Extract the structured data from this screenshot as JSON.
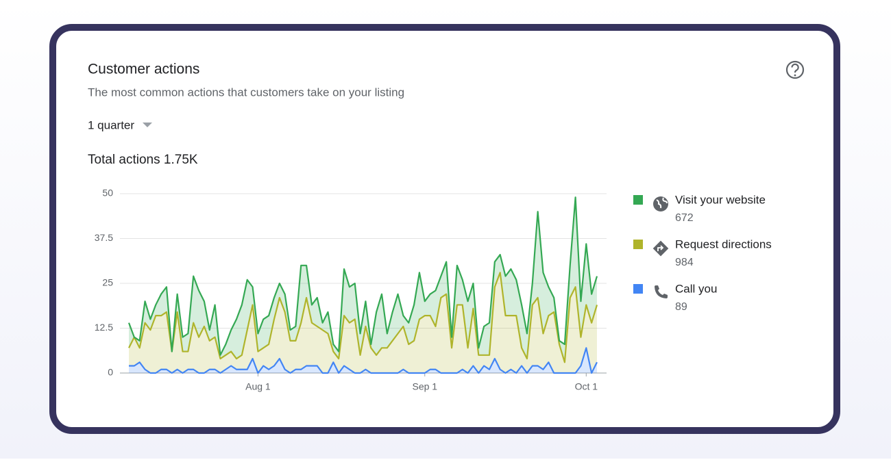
{
  "header": {
    "title": "Customer actions",
    "subtitle": "The most common actions that customers take on your listing",
    "period": "1 quarter",
    "total_label": "Total actions",
    "total_value": "1.75K"
  },
  "chart_data": {
    "type": "stacked-area",
    "categories": [
      null,
      null,
      null,
      null,
      null,
      null,
      null,
      null,
      null,
      null,
      null,
      null,
      null,
      null,
      null,
      null,
      null,
      null,
      null,
      null,
      null,
      null,
      null,
      null,
      "Aug 1",
      null,
      null,
      null,
      null,
      null,
      null,
      null,
      null,
      null,
      null,
      null,
      null,
      null,
      null,
      null,
      null,
      null,
      null,
      null,
      null,
      null,
      null,
      null,
      null,
      null,
      null,
      null,
      null,
      null,
      null,
      "Sep 1",
      null,
      null,
      null,
      null,
      null,
      null,
      null,
      null,
      null,
      null,
      null,
      null,
      null,
      null,
      null,
      null,
      null,
      null,
      null,
      null,
      null,
      null,
      null,
      null,
      null,
      null,
      null,
      null,
      null,
      "Oct 1",
      null,
      null
    ],
    "series": [
      {
        "name": "Visit your website",
        "total": 672,
        "color": "#34a853",
        "values": [
          7,
          0,
          2,
          6,
          3,
          3,
          6,
          7,
          0,
          5,
          4,
          5,
          13,
          13,
          7,
          3,
          9,
          1,
          3,
          6,
          11,
          14,
          14,
          5,
          5,
          8,
          8,
          6,
          4,
          5,
          3,
          4,
          16,
          9,
          5,
          8,
          2,
          6,
          2,
          2,
          13,
          10,
          10,
          6,
          7,
          1,
          12,
          15,
          4,
          8,
          11,
          3,
          6,
          10,
          13,
          4,
          6,
          10,
          6,
          9,
          3,
          11,
          7,
          13,
          7,
          2,
          8,
          9,
          7,
          5,
          11,
          13,
          10,
          12,
          7,
          6,
          24,
          17,
          8,
          4,
          1,
          5,
          9,
          25,
          10,
          17,
          8,
          8
        ]
      },
      {
        "name": "Request directions",
        "total": 984,
        "color": "#afb42b",
        "values": [
          5,
          8,
          4,
          13,
          12,
          16,
          15,
          16,
          6,
          16,
          6,
          5,
          13,
          10,
          13,
          8,
          9,
          4,
          4,
          4,
          3,
          4,
          11,
          15,
          6,
          5,
          7,
          13,
          17,
          16,
          9,
          8,
          13,
          19,
          12,
          11,
          12,
          11,
          3,
          4,
          14,
          13,
          15,
          5,
          12,
          7,
          5,
          7,
          7,
          9,
          11,
          12,
          8,
          9,
          15,
          16,
          15,
          12,
          21,
          22,
          7,
          19,
          18,
          7,
          16,
          5,
          3,
          4,
          20,
          27,
          16,
          15,
          16,
          5,
          4,
          17,
          19,
          10,
          13,
          17,
          8,
          3,
          21,
          24,
          8,
          12,
          14,
          16
        ]
      },
      {
        "name": "Call you",
        "total": 89,
        "color": "#4285f4",
        "values": [
          2,
          2,
          3,
          1,
          0,
          0,
          1,
          1,
          0,
          1,
          0,
          1,
          1,
          0,
          0,
          1,
          1,
          0,
          1,
          2,
          1,
          1,
          1,
          4,
          0,
          2,
          1,
          2,
          4,
          1,
          0,
          1,
          1,
          2,
          2,
          2,
          0,
          0,
          3,
          0,
          2,
          1,
          0,
          0,
          1,
          0,
          0,
          0,
          0,
          0,
          0,
          1,
          0,
          0,
          0,
          0,
          1,
          1,
          0,
          0,
          0,
          0,
          1,
          0,
          2,
          0,
          2,
          1,
          4,
          1,
          0,
          1,
          0,
          2,
          0,
          2,
          2,
          1,
          3,
          0,
          0,
          0,
          0,
          0,
          2,
          7,
          0,
          3
        ]
      }
    ],
    "ylim": [
      0,
      50
    ],
    "yticks": [
      0,
      12.5,
      25,
      37.5,
      50
    ],
    "grid": true,
    "stacked": true,
    "legend": "right"
  }
}
